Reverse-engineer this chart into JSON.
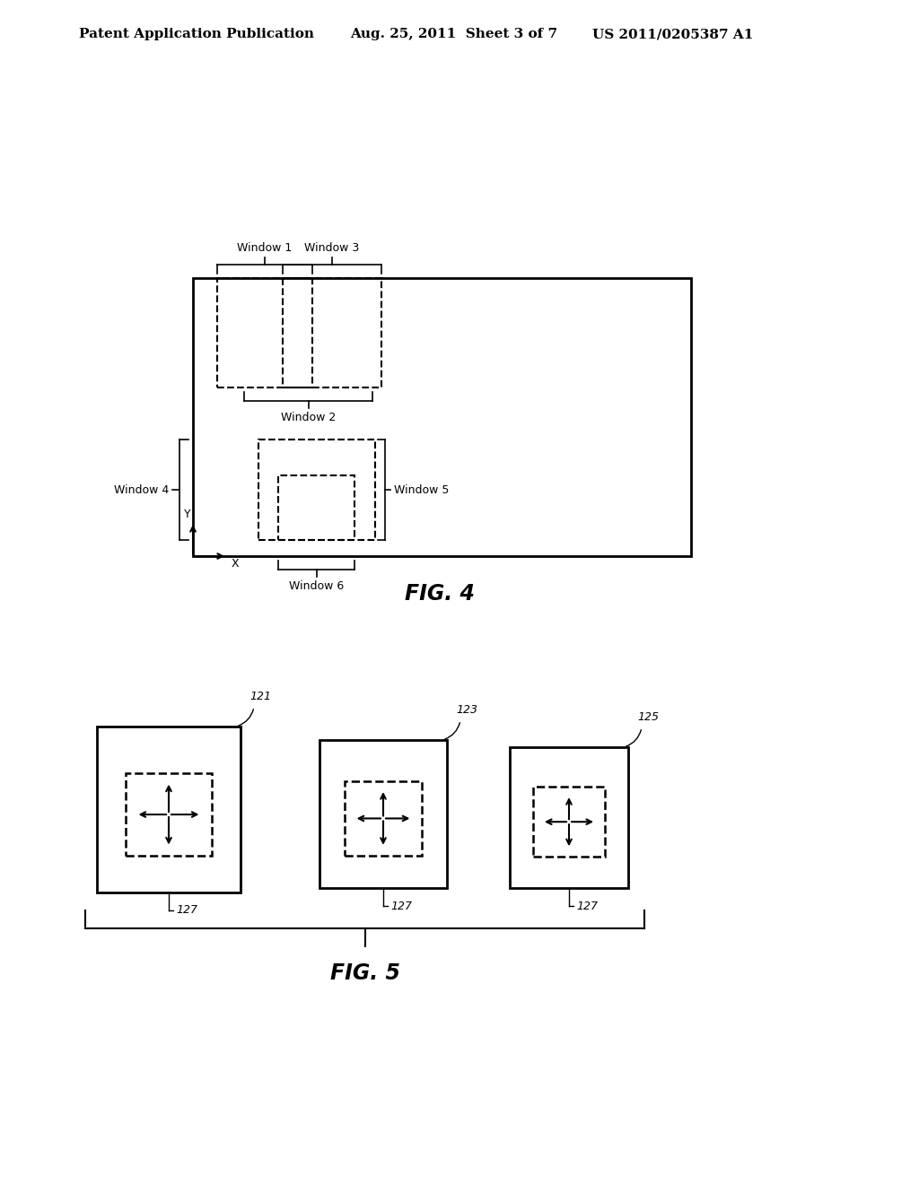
{
  "bg_color": "#ffffff",
  "header_left": "Patent Application Publication",
  "header_mid": "Aug. 25, 2011  Sheet 3 of 7",
  "header_right": "US 2011/0205387 A1",
  "fig4_label": "FIG. 4",
  "fig5_label": "FIG. 5"
}
